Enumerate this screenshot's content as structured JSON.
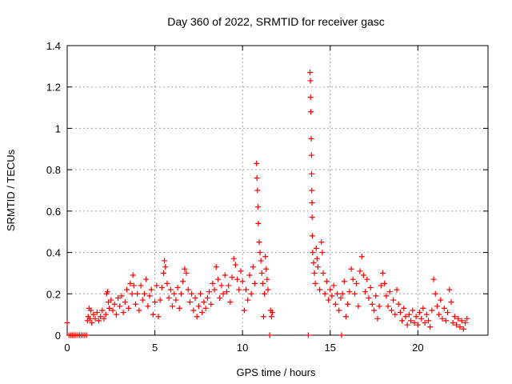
{
  "chart_data": {
    "type": "scatter",
    "title": "Day 360 of 2022, SRMTID for receiver gasc",
    "xlabel": "GPS time / hours",
    "ylabel": "SRMTID / TECUs",
    "xlim": [
      0,
      24
    ],
    "ylim": [
      0,
      1.4
    ],
    "grid": true,
    "marker": "+",
    "marker_color": "#ff0000",
    "x_ticks": [
      0,
      5,
      10,
      15,
      20
    ],
    "x_tick_labels": [
      "0",
      "5",
      "10",
      "15",
      "20"
    ],
    "y_ticks": [
      0,
      0.2,
      0.4,
      0.6,
      0.8,
      1.0,
      1.2,
      1.4
    ],
    "y_tick_labels": [
      "0",
      "0.2",
      "0.4",
      "0.6",
      "0.8",
      "1",
      "1.2",
      "1.4"
    ],
    "series": [
      {
        "name": "SRMTID",
        "points": [
          [
            0.0,
            0.06
          ],
          [
            0.1,
            0.0
          ],
          [
            0.2,
            0.0
          ],
          [
            0.3,
            0.0
          ],
          [
            0.4,
            0.0
          ],
          [
            0.5,
            0.0
          ],
          [
            0.6,
            0.0
          ],
          [
            0.7,
            0.0
          ],
          [
            0.8,
            0.0
          ],
          [
            0.9,
            0.0
          ],
          [
            1.0,
            0.0
          ],
          [
            1.1,
            0.0
          ],
          [
            1.15,
            0.07
          ],
          [
            1.2,
            0.09
          ],
          [
            1.25,
            0.13
          ],
          [
            1.3,
            0.08
          ],
          [
            1.35,
            0.12
          ],
          [
            1.4,
            0.06
          ],
          [
            1.5,
            0.1
          ],
          [
            1.6,
            0.08
          ],
          [
            1.7,
            0.11
          ],
          [
            1.8,
            0.07
          ],
          [
            1.9,
            0.09
          ],
          [
            2.0,
            0.12
          ],
          [
            2.1,
            0.08
          ],
          [
            2.2,
            0.1
          ],
          [
            2.25,
            0.2
          ],
          [
            2.3,
            0.21
          ],
          [
            2.35,
            0.16
          ],
          [
            2.4,
            0.13
          ],
          [
            2.5,
            0.17
          ],
          [
            2.6,
            0.12
          ],
          [
            2.7,
            0.15
          ],
          [
            2.8,
            0.1
          ],
          [
            2.9,
            0.18
          ],
          [
            3.0,
            0.14
          ],
          [
            3.1,
            0.19
          ],
          [
            3.2,
            0.11
          ],
          [
            3.3,
            0.16
          ],
          [
            3.4,
            0.22
          ],
          [
            3.5,
            0.13
          ],
          [
            3.6,
            0.25
          ],
          [
            3.7,
            0.2
          ],
          [
            3.75,
            0.29
          ],
          [
            3.8,
            0.24
          ],
          [
            3.9,
            0.15
          ],
          [
            4.0,
            0.2
          ],
          [
            4.1,
            0.12
          ],
          [
            4.2,
            0.24
          ],
          [
            4.3,
            0.17
          ],
          [
            4.4,
            0.2
          ],
          [
            4.5,
            0.27
          ],
          [
            4.6,
            0.14
          ],
          [
            4.7,
            0.19
          ],
          [
            4.8,
            0.22
          ],
          [
            4.9,
            0.1
          ],
          [
            5.0,
            0.16
          ],
          [
            5.1,
            0.24
          ],
          [
            5.2,
            0.09
          ],
          [
            5.3,
            0.17
          ],
          [
            5.4,
            0.23
          ],
          [
            5.5,
            0.3
          ],
          [
            5.55,
            0.36
          ],
          [
            5.6,
            0.33
          ],
          [
            5.7,
            0.25
          ],
          [
            5.8,
            0.18
          ],
          [
            5.9,
            0.22
          ],
          [
            6.0,
            0.14
          ],
          [
            6.1,
            0.2
          ],
          [
            6.2,
            0.17
          ],
          [
            6.3,
            0.23
          ],
          [
            6.4,
            0.13
          ],
          [
            6.5,
            0.2
          ],
          [
            6.6,
            0.26
          ],
          [
            6.7,
            0.32
          ],
          [
            6.8,
            0.3
          ],
          [
            6.9,
            0.22
          ],
          [
            7.0,
            0.16
          ],
          [
            7.1,
            0.2
          ],
          [
            7.2,
            0.12
          ],
          [
            7.3,
            0.18
          ],
          [
            7.4,
            0.09
          ],
          [
            7.5,
            0.14
          ],
          [
            7.6,
            0.2
          ],
          [
            7.7,
            0.11
          ],
          [
            7.8,
            0.16
          ],
          [
            7.9,
            0.13
          ],
          [
            8.0,
            0.18
          ],
          [
            8.1,
            0.21
          ],
          [
            8.2,
            0.15
          ],
          [
            8.3,
            0.25
          ],
          [
            8.4,
            0.22
          ],
          [
            8.5,
            0.33
          ],
          [
            8.6,
            0.27
          ],
          [
            8.7,
            0.18
          ],
          [
            8.8,
            0.24
          ],
          [
            8.9,
            0.2
          ],
          [
            9.0,
            0.29
          ],
          [
            9.1,
            0.21
          ],
          [
            9.2,
            0.24
          ],
          [
            9.3,
            0.16
          ],
          [
            9.4,
            0.28
          ],
          [
            9.5,
            0.37
          ],
          [
            9.6,
            0.34
          ],
          [
            9.7,
            0.27
          ],
          [
            9.8,
            0.22
          ],
          [
            9.9,
            0.31
          ],
          [
            10.0,
            0.26
          ],
          [
            10.1,
            0.12
          ],
          [
            10.2,
            0.22
          ],
          [
            10.3,
            0.17
          ],
          [
            10.4,
            0.29
          ],
          [
            10.5,
            0.2
          ],
          [
            10.6,
            0.33
          ],
          [
            10.7,
            0.25
          ],
          [
            10.8,
            0.83
          ],
          [
            10.82,
            0.76
          ],
          [
            10.85,
            0.7
          ],
          [
            10.88,
            0.62
          ],
          [
            10.9,
            0.54
          ],
          [
            10.95,
            0.45
          ],
          [
            11.0,
            0.4
          ],
          [
            11.05,
            0.36
          ],
          [
            11.1,
            0.3
          ],
          [
            11.15,
            0.25
          ],
          [
            11.2,
            0.09
          ],
          [
            11.25,
            0.2
          ],
          [
            11.3,
            0.38
          ],
          [
            11.35,
            0.32
          ],
          [
            11.4,
            0.27
          ],
          [
            11.45,
            0.22
          ],
          [
            11.6,
            0.12
          ],
          [
            11.65,
            0.09
          ],
          [
            11.7,
            0.11
          ],
          [
            11.55,
            0.0
          ],
          [
            13.75,
            0.0
          ],
          [
            13.85,
            1.27
          ],
          [
            13.87,
            1.23
          ],
          [
            13.88,
            1.15
          ],
          [
            13.9,
            1.08
          ],
          [
            13.92,
            0.95
          ],
          [
            13.93,
            0.87
          ],
          [
            13.94,
            0.78
          ],
          [
            13.95,
            0.7
          ],
          [
            13.96,
            0.64
          ],
          [
            13.97,
            0.57
          ],
          [
            13.98,
            0.48
          ],
          [
            14.0,
            0.4
          ],
          [
            14.05,
            0.35
          ],
          [
            14.1,
            0.3
          ],
          [
            14.15,
            0.25
          ],
          [
            14.2,
            0.42
          ],
          [
            14.25,
            0.37
          ],
          [
            14.3,
            0.33
          ],
          [
            14.4,
            0.22
          ],
          [
            14.5,
            0.45
          ],
          [
            14.55,
            0.4
          ],
          [
            14.6,
            0.3
          ],
          [
            14.7,
            0.2
          ],
          [
            14.8,
            0.26
          ],
          [
            14.9,
            0.17
          ],
          [
            15.0,
            0.22
          ],
          [
            15.1,
            0.19
          ],
          [
            15.2,
            0.24
          ],
          [
            15.3,
            0.15
          ],
          [
            15.4,
            0.2
          ],
          [
            15.5,
            0.12
          ],
          [
            15.6,
            0.18
          ],
          [
            15.65,
            0.0
          ],
          [
            15.7,
            0.2
          ],
          [
            15.8,
            0.26
          ],
          [
            15.9,
            0.09
          ],
          [
            16.0,
            0.15
          ],
          [
            16.1,
            0.21
          ],
          [
            16.2,
            0.32
          ],
          [
            16.3,
            0.27
          ],
          [
            16.4,
            0.2
          ],
          [
            16.5,
            0.25
          ],
          [
            16.6,
            0.14
          ],
          [
            16.7,
            0.31
          ],
          [
            16.8,
            0.38
          ],
          [
            16.9,
            0.29
          ],
          [
            17.0,
            0.21
          ],
          [
            17.1,
            0.27
          ],
          [
            17.2,
            0.18
          ],
          [
            17.3,
            0.23
          ],
          [
            17.4,
            0.15
          ],
          [
            17.5,
            0.12
          ],
          [
            17.6,
            0.19
          ],
          [
            17.7,
            0.08
          ],
          [
            17.8,
            0.14
          ],
          [
            17.9,
            0.24
          ],
          [
            18.0,
            0.3
          ],
          [
            18.1,
            0.25
          ],
          [
            18.2,
            0.19
          ],
          [
            18.3,
            0.14
          ],
          [
            18.4,
            0.21
          ],
          [
            18.5,
            0.12
          ],
          [
            18.6,
            0.17
          ],
          [
            18.7,
            0.1
          ],
          [
            18.8,
            0.22
          ],
          [
            18.9,
            0.15
          ],
          [
            19.0,
            0.11
          ],
          [
            19.1,
            0.07
          ],
          [
            19.2,
            0.13
          ],
          [
            19.3,
            0.09
          ],
          [
            19.4,
            0.05
          ],
          [
            19.5,
            0.1
          ],
          [
            19.6,
            0.07
          ],
          [
            19.7,
            0.12
          ],
          [
            19.8,
            0.06
          ],
          [
            19.9,
            0.09
          ],
          [
            20.0,
            0.05
          ],
          [
            20.1,
            0.11
          ],
          [
            20.2,
            0.08
          ],
          [
            20.3,
            0.13
          ],
          [
            20.4,
            0.06
          ],
          [
            20.5,
            0.1
          ],
          [
            20.6,
            0.07
          ],
          [
            20.7,
            0.04
          ],
          [
            20.8,
            0.12
          ],
          [
            20.9,
            0.27
          ],
          [
            21.0,
            0.2
          ],
          [
            21.1,
            0.14
          ],
          [
            21.2,
            0.1
          ],
          [
            21.3,
            0.17
          ],
          [
            21.4,
            0.08
          ],
          [
            21.5,
            0.13
          ],
          [
            21.6,
            0.07
          ],
          [
            21.7,
            0.11
          ],
          [
            21.8,
            0.22
          ],
          [
            21.9,
            0.16
          ],
          [
            22.0,
            0.06
          ],
          [
            22.1,
            0.09
          ],
          [
            22.2,
            0.05
          ],
          [
            22.3,
            0.08
          ],
          [
            22.4,
            0.04
          ],
          [
            22.5,
            0.07
          ],
          [
            22.6,
            0.03
          ],
          [
            22.7,
            0.06
          ],
          [
            22.8,
            0.08
          ]
        ]
      }
    ]
  }
}
